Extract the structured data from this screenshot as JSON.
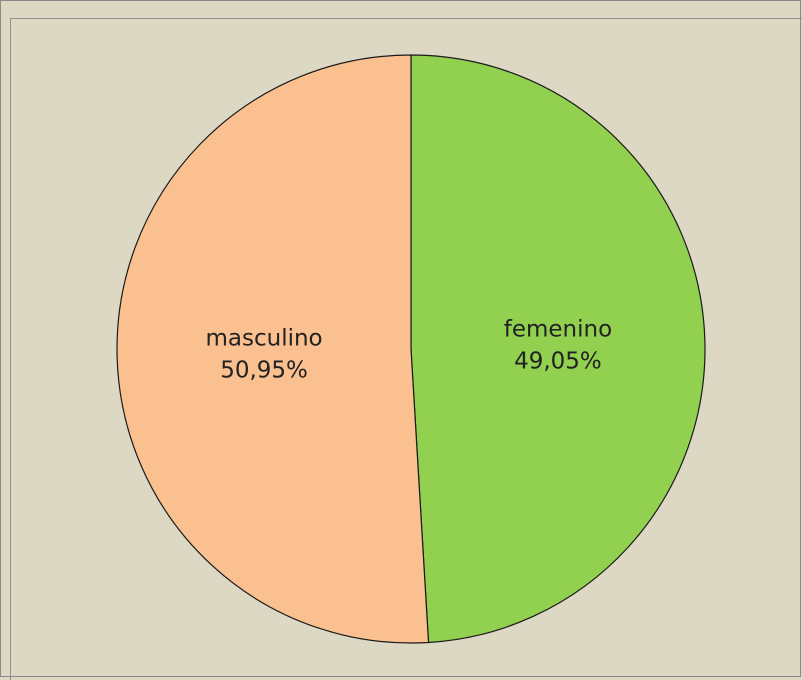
{
  "chart_data": {
    "type": "pie",
    "title": "",
    "slices": [
      {
        "label": "femenino",
        "value": 49.05,
        "value_label": "49,05%",
        "color": "#92d050"
      },
      {
        "label": "masculino",
        "value": 50.95,
        "value_label": "50,95%",
        "color": "#fac090"
      }
    ],
    "start": "top",
    "direction": "clockwise",
    "legend": "none",
    "background_color": "#ddd8c4",
    "outline_color": "#1a1a1a"
  }
}
